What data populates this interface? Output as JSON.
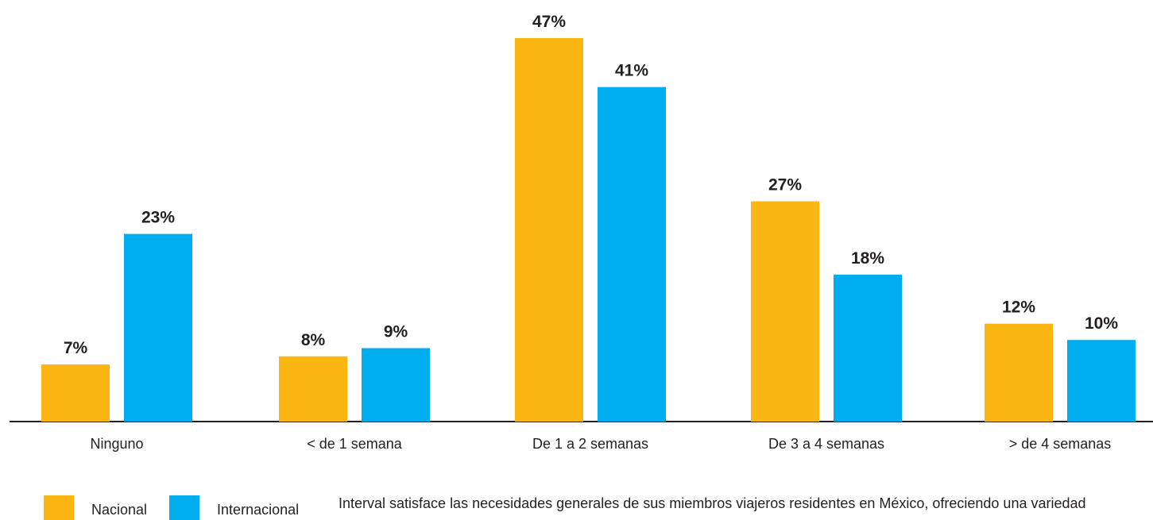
{
  "chart_data": {
    "type": "bar",
    "categories": [
      "Ninguno",
      "< de 1 semana",
      "De 1 a 2 semanas",
      "De 3 a 4 semanas",
      "> de 4 semanas"
    ],
    "series": [
      {
        "name": "Nacional",
        "values": [
          7,
          8,
          47,
          27,
          12
        ],
        "color": "#fbb614"
      },
      {
        "name": "Internacional",
        "values": [
          23,
          9,
          41,
          18,
          10
        ],
        "color": "#00adef"
      }
    ],
    "value_suffix": "%",
    "ylim": [
      0,
      47
    ],
    "grid": false,
    "legend_position": "bottom-left",
    "title": "",
    "xlabel": "",
    "ylabel": ""
  },
  "legend": {
    "nacional": "Nacional",
    "internacional": "Internacional"
  },
  "footnote": "Interval satisface las necesidades generales de sus miembros viajeros residentes en México, ofreciendo una variedad",
  "colors": {
    "nacional": "#fbb614",
    "internacional": "#00adef",
    "axis": "#231f20",
    "text": "#231f20"
  }
}
